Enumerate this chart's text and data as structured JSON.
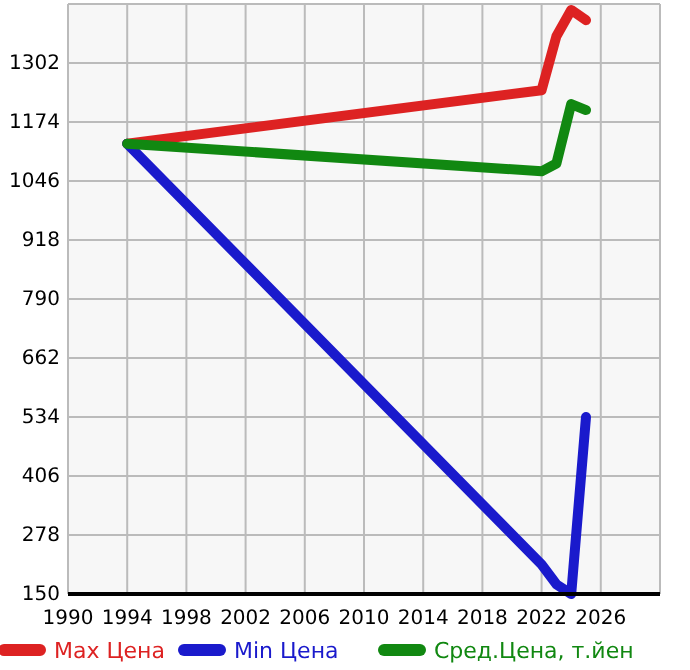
{
  "chart_data": {
    "type": "line",
    "x": [
      1994,
      2022,
      2023,
      2024,
      2025
    ],
    "series": [
      {
        "name": "Max Цена",
        "color": "#dd2222",
        "values": [
          1127,
          1243,
          1360,
          1417,
          1395
        ]
      },
      {
        "name": "Min Цена",
        "color": "#1a1acc",
        "values": [
          1127,
          214,
          171,
          150,
          534
        ]
      },
      {
        "name": "Сред.Цена, т.йен",
        "color": "#118811",
        "values": [
          1127,
          1067,
          1084,
          1213,
          1200
        ]
      }
    ],
    "xlim": [
      1990,
      2030
    ],
    "xticks": [
      1990,
      1994,
      1998,
      2002,
      2006,
      2010,
      2014,
      2018,
      2022,
      2026
    ],
    "ylim": [
      150,
      1430
    ],
    "yticks": [
      150,
      278,
      406,
      534,
      662,
      790,
      918,
      1046,
      1174,
      1302
    ],
    "grid": true,
    "legend": "bottom",
    "marker": "none",
    "line_style": "solid"
  }
}
